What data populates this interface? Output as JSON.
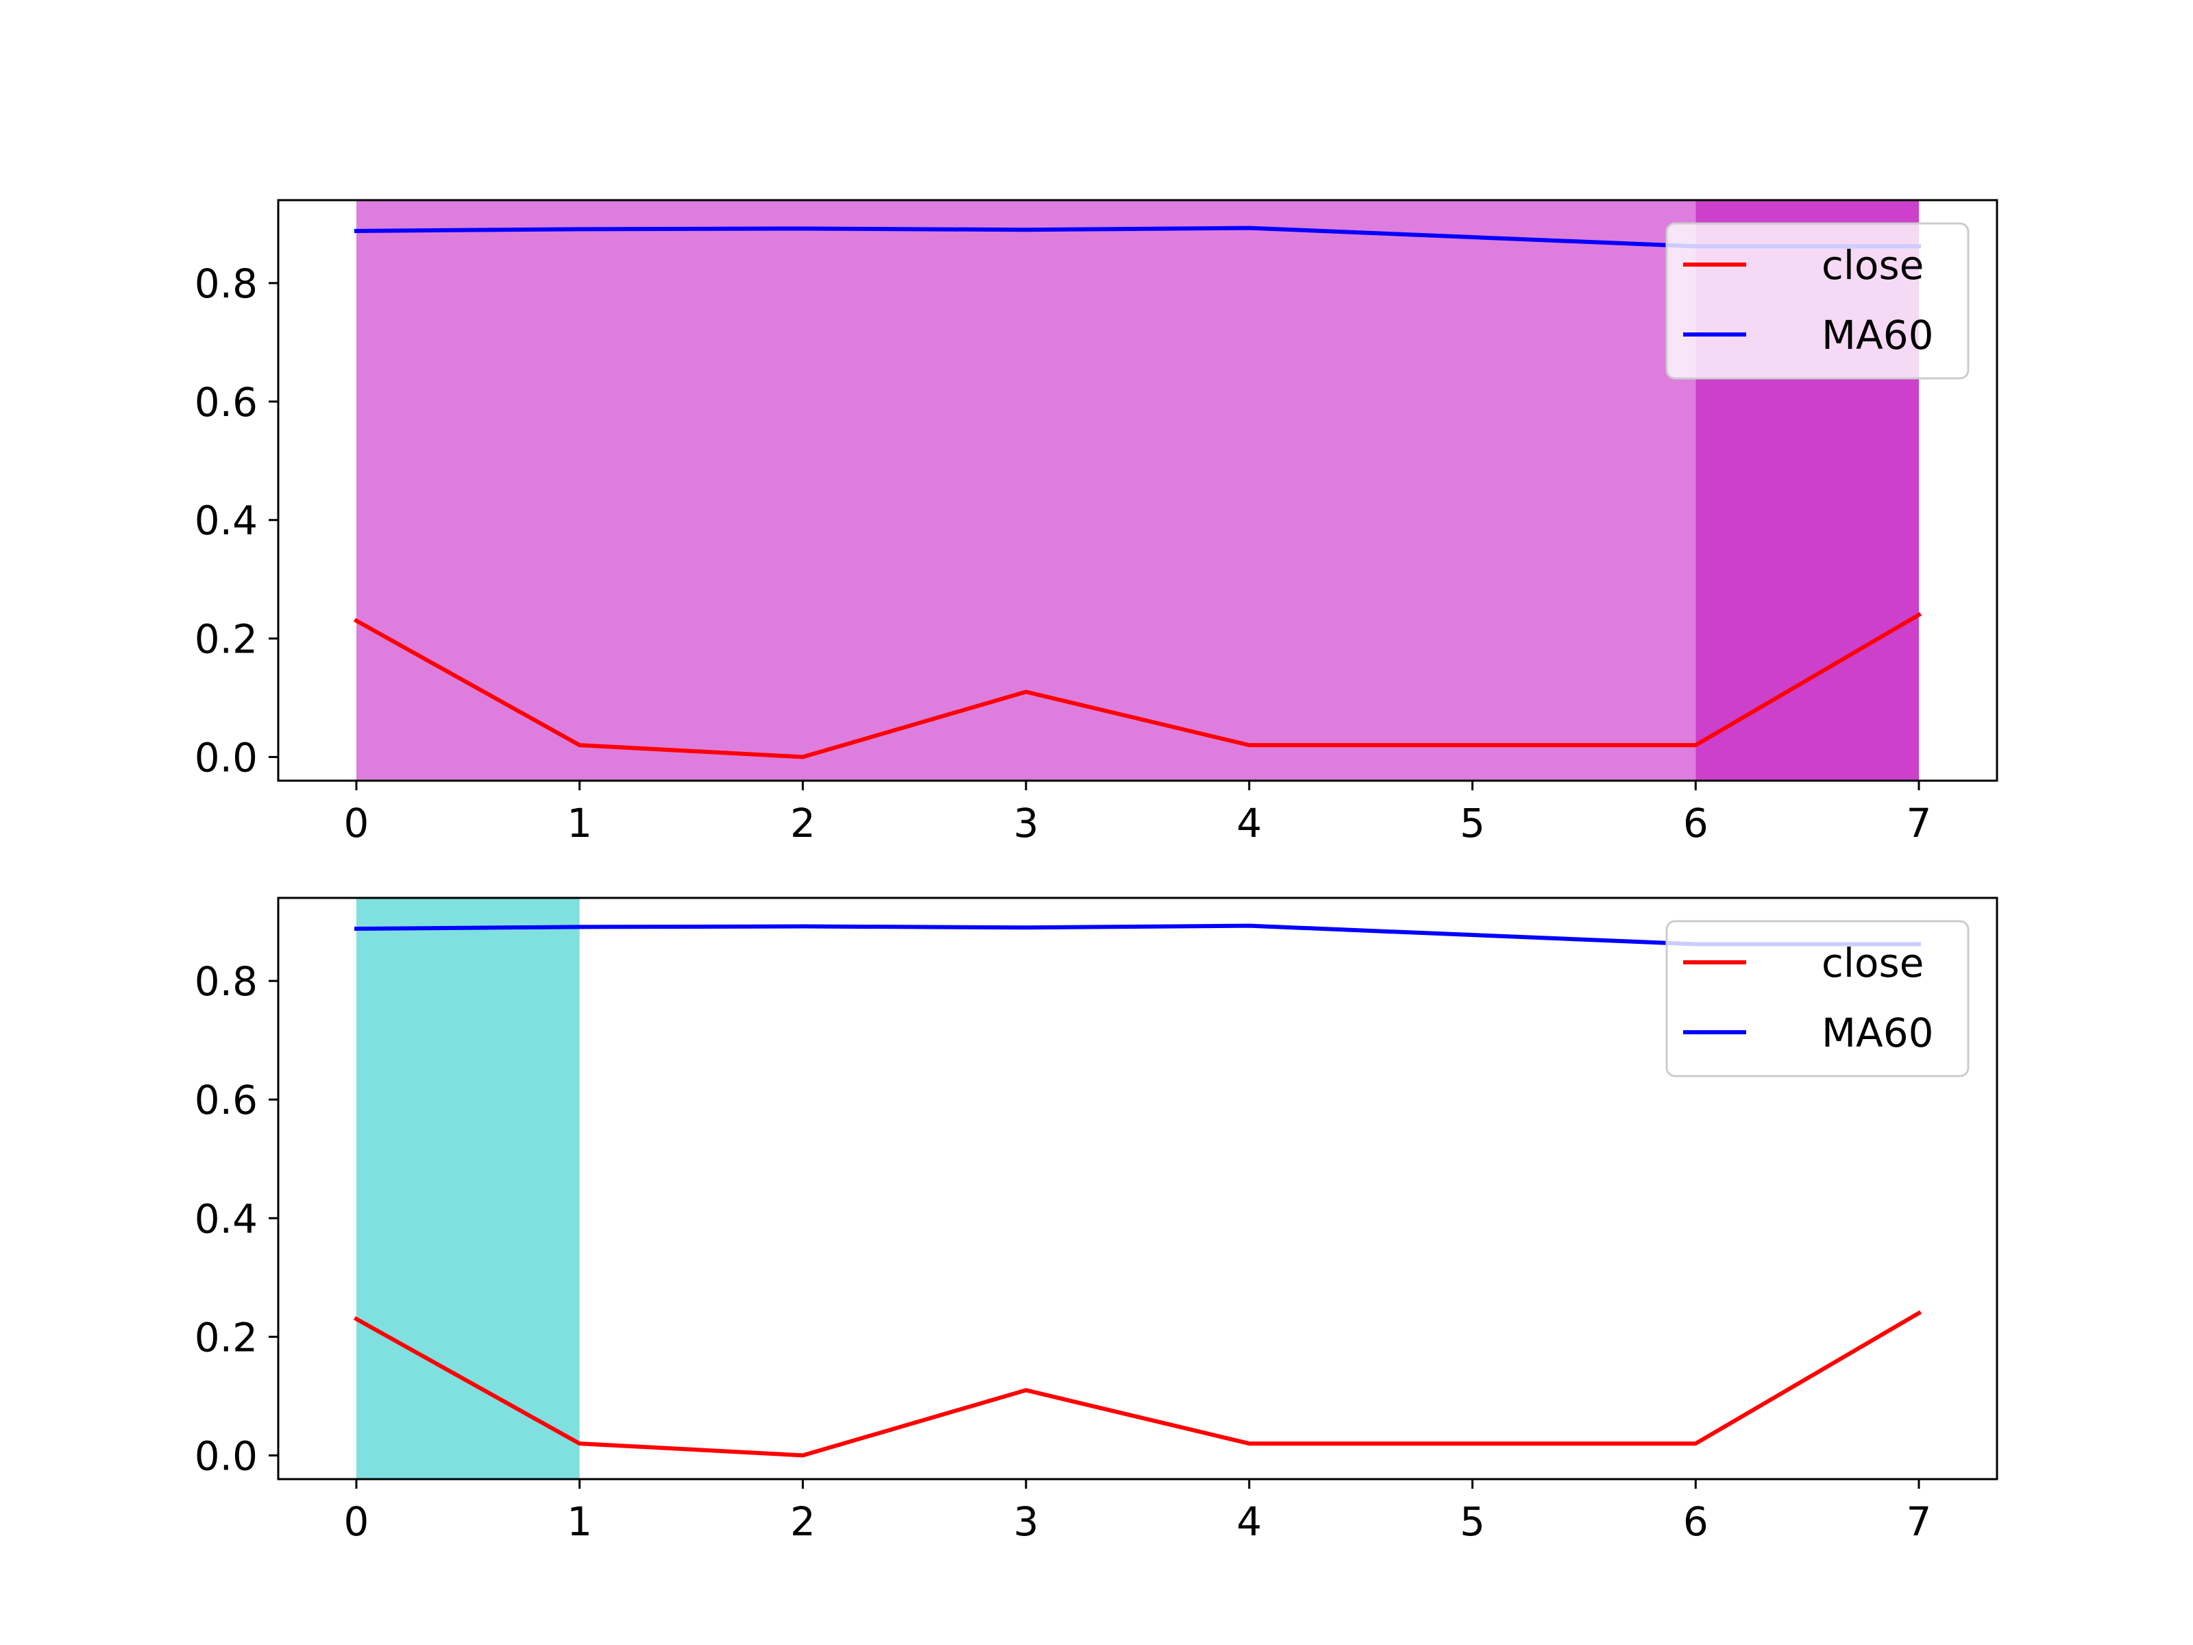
{
  "chart_data": [
    {
      "type": "line",
      "x": [
        0,
        1,
        2,
        3,
        4,
        5,
        6,
        7
      ],
      "xlim": [
        -0.35,
        7.35
      ],
      "ylim": [
        -0.04,
        0.94
      ],
      "xticks": [
        0,
        1,
        2,
        3,
        4,
        5,
        6,
        7
      ],
      "yticks": [
        0.0,
        0.2,
        0.4,
        0.6,
        0.8
      ],
      "xtick_labels": [
        "0",
        "1",
        "2",
        "3",
        "4",
        "5",
        "6",
        "7"
      ],
      "ytick_labels": [
        "0.0",
        "0.2",
        "0.4",
        "0.6",
        "0.8"
      ],
      "title": "",
      "xlabel": "",
      "ylabel": "",
      "grid": false,
      "legend_position": "upper right",
      "series": [
        {
          "name": "close",
          "color": "#ff0000",
          "x": [
            0,
            1,
            2,
            3,
            4,
            6,
            7
          ],
          "values": [
            0.23,
            0.02,
            0.0,
            0.11,
            0.02,
            0.02,
            0.24
          ]
        },
        {
          "name": "MA60",
          "color": "#0000ff",
          "x": [
            0,
            1,
            2,
            3,
            4,
            6,
            7
          ],
          "values": [
            0.888,
            0.891,
            0.892,
            0.89,
            0.893,
            0.862,
            0.862
          ]
        }
      ],
      "shaded_regions": [
        {
          "x_start": 0,
          "x_end": 6,
          "color": "#dd7ddd"
        },
        {
          "x_start": 6,
          "x_end": 7,
          "color": "#cc40cc"
        }
      ]
    },
    {
      "type": "line",
      "x": [
        0,
        1,
        2,
        3,
        4,
        5,
        6,
        7
      ],
      "xlim": [
        -0.35,
        7.35
      ],
      "ylim": [
        -0.04,
        0.94
      ],
      "xticks": [
        0,
        1,
        2,
        3,
        4,
        5,
        6,
        7
      ],
      "yticks": [
        0.0,
        0.2,
        0.4,
        0.6,
        0.8
      ],
      "xtick_labels": [
        "0",
        "1",
        "2",
        "3",
        "4",
        "5",
        "6",
        "7"
      ],
      "ytick_labels": [
        "0.0",
        "0.2",
        "0.4",
        "0.6",
        "0.8"
      ],
      "title": "",
      "xlabel": "",
      "ylabel": "",
      "grid": false,
      "legend_position": "upper right",
      "series": [
        {
          "name": "close",
          "color": "#ff0000",
          "x": [
            0,
            1,
            2,
            3,
            4,
            6,
            7
          ],
          "values": [
            0.23,
            0.02,
            0.0,
            0.11,
            0.02,
            0.02,
            0.24
          ]
        },
        {
          "name": "MA60",
          "color": "#0000ff",
          "x": [
            0,
            1,
            2,
            3,
            4,
            6,
            7
          ],
          "values": [
            0.888,
            0.891,
            0.892,
            0.89,
            0.893,
            0.862,
            0.862
          ]
        }
      ],
      "shaded_regions": [
        {
          "x_start": 0,
          "x_end": 1,
          "color": "#80dfdf"
        }
      ]
    }
  ]
}
